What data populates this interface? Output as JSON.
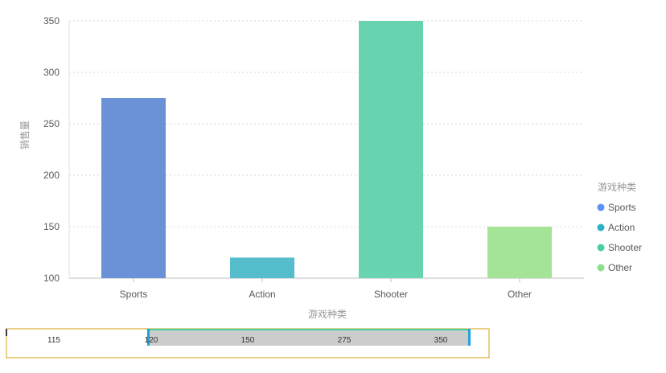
{
  "chart_data": {
    "type": "bar",
    "categories": [
      "Sports",
      "Action",
      "Shooter",
      "Other"
    ],
    "values": [
      275,
      120,
      350,
      150
    ],
    "colors": [
      "#5B8FF9",
      "#2FB1C5",
      "#46CFA1",
      "#8AE08A"
    ],
    "bar_colors": [
      "#6B91D6",
      "#56BDCC",
      "#68D3B0",
      "#A3E497"
    ],
    "xlabel": "游戏种类",
    "ylabel": "销售量",
    "ylim": [
      100,
      350
    ],
    "yticks": [
      100,
      150,
      200,
      250,
      300,
      350
    ],
    "grid": true,
    "legend": {
      "title": "游戏种类",
      "position": "right",
      "items": [
        "Sports",
        "Action",
        "Shooter",
        "Other"
      ]
    }
  },
  "slider": {
    "labels": [
      "115",
      "120",
      "150",
      "275",
      "350"
    ],
    "range": [
      "120",
      "350"
    ]
  }
}
